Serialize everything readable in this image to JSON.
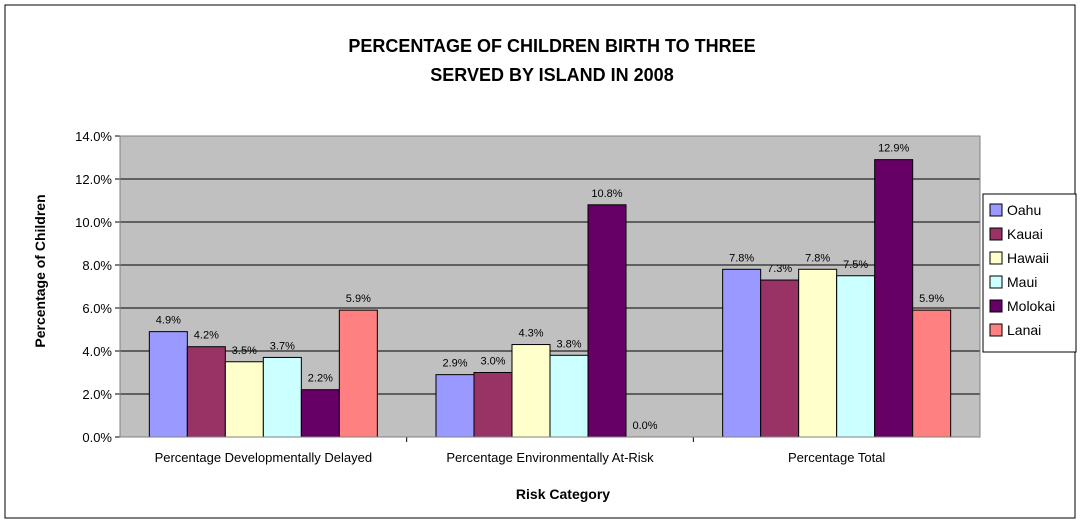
{
  "chart_data": {
    "type": "bar",
    "title_lines": [
      "PERCENTAGE OF CHILDREN BIRTH TO THREE",
      "SERVED BY ISLAND IN 2008"
    ],
    "xlabel": "Risk Category",
    "ylabel": "Percentage of Children",
    "ylim": [
      0,
      14
    ],
    "ytick_labels": [
      "0.0%",
      "2.0%",
      "4.0%",
      "6.0%",
      "8.0%",
      "10.0%",
      "12.0%",
      "14.0%"
    ],
    "grid": true,
    "legend_position": "right",
    "categories": [
      "Percentage Developmentally Delayed",
      "Percentage Environmentally At-Risk",
      "Percentage Total"
    ],
    "series": [
      {
        "name": "Oahu",
        "color": "#9999FF",
        "values": [
          4.9,
          2.9,
          7.8
        ],
        "labels": [
          "4.9%",
          "2.9%",
          "7.8%"
        ]
      },
      {
        "name": "Kauai",
        "color": "#993366",
        "values": [
          4.2,
          3.0,
          7.3
        ],
        "labels": [
          "4.2%",
          "3.0%",
          "7.3%"
        ]
      },
      {
        "name": "Hawaii",
        "color": "#FFFFCC",
        "values": [
          3.5,
          4.3,
          7.8
        ],
        "labels": [
          "3.5%",
          "4.3%",
          "7.8%"
        ]
      },
      {
        "name": "Maui",
        "color": "#CCFFFF",
        "values": [
          3.7,
          3.8,
          7.5
        ],
        "labels": [
          "3.7%",
          "3.8%",
          "7.5%"
        ]
      },
      {
        "name": "Molokai",
        "color": "#660066",
        "values": [
          2.2,
          10.8,
          12.9
        ],
        "labels": [
          "2.2%",
          "10.8%",
          "12.9%"
        ]
      },
      {
        "name": "Lanai",
        "color": "#FF8080",
        "values": [
          5.9,
          0.0,
          5.9
        ],
        "labels": [
          "5.9%",
          "0.0%",
          "5.9%"
        ]
      }
    ],
    "plot_background": "#C0C0C0"
  }
}
